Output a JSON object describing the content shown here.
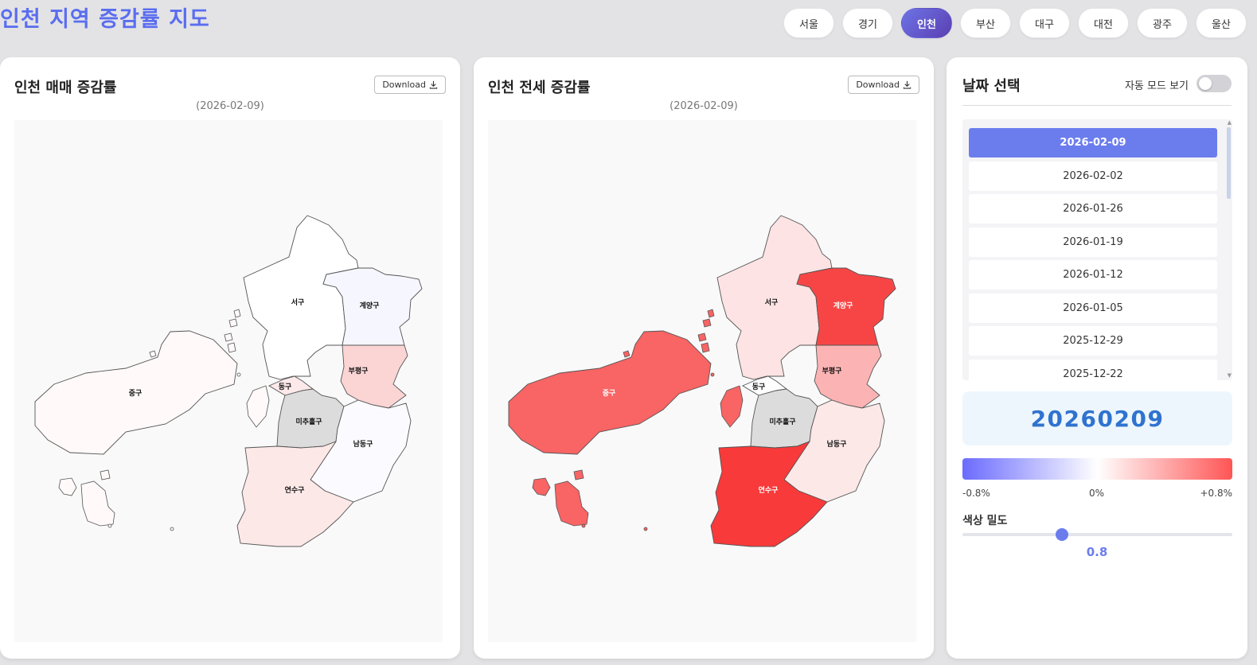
{
  "page_title": "인천 지역 증감률 지도",
  "city_tabs": [
    {
      "label": "서울",
      "active": false
    },
    {
      "label": "경기",
      "active": false
    },
    {
      "label": "인천",
      "active": true
    },
    {
      "label": "부산",
      "active": false
    },
    {
      "label": "대구",
      "active": false
    },
    {
      "label": "대전",
      "active": false
    },
    {
      "label": "광주",
      "active": false
    },
    {
      "label": "울산",
      "active": false
    }
  ],
  "maps": [
    {
      "title": "인천 매매 증감률",
      "date": "(2026-02-09)",
      "download_label": "Download",
      "regions": {
        "seogu": {
          "label": "서구",
          "color": "#ffffff"
        },
        "gyeyang": {
          "label": "계양구",
          "color": "#f6f6ff"
        },
        "bupyeong": {
          "label": "부평구",
          "color": "#fbd4d4"
        },
        "junggu": {
          "label": "중구",
          "color": "#fff9f9"
        },
        "donggu": {
          "label": "동구",
          "color": "#fde9e9"
        },
        "michuhol": {
          "label": "미추홀구",
          "color": "#dcdcdc"
        },
        "namdong": {
          "label": "남동구",
          "color": "#fbfbff"
        },
        "yeonsu": {
          "label": "연수구",
          "color": "#fde8e8"
        }
      }
    },
    {
      "title": "인천 전세 증감률",
      "date": "(2026-02-09)",
      "download_label": "Download",
      "regions": {
        "seogu": {
          "label": "서구",
          "color": "#fde3e3"
        },
        "gyeyang": {
          "label": "계양구",
          "color": "#f74545"
        },
        "bupyeong": {
          "label": "부평구",
          "color": "#fbb3b3"
        },
        "junggu": {
          "label": "중구",
          "color": "#f96464"
        },
        "donggu": {
          "label": "동구",
          "color": "#ffffff"
        },
        "michuhol": {
          "label": "미추홀구",
          "color": "#dcdcdc"
        },
        "namdong": {
          "label": "남동구",
          "color": "#fde8e8"
        },
        "yeonsu": {
          "label": "연수구",
          "color": "#f83a3a"
        }
      },
      "light_labels": [
        "gyeyang",
        "junggu",
        "yeonsu"
      ]
    }
  ],
  "side": {
    "title": "날짜 선택",
    "auto_mode_label": "자동 모드 보기",
    "dates": [
      "2026-02-09",
      "2026-02-02",
      "2026-01-26",
      "2026-01-19",
      "2026-01-12",
      "2026-01-05",
      "2025-12-29",
      "2025-12-22"
    ],
    "selected_date": "2026-02-09",
    "date_display": "20260209",
    "scale": {
      "min": "-0.8%",
      "mid": "0%",
      "max": "+0.8%",
      "colors": [
        "#6b6bff",
        "#ffffff",
        "#ff5555"
      ]
    },
    "density_label": "색상 밀도",
    "density_value": "0.8",
    "density_fraction": 0.37
  }
}
